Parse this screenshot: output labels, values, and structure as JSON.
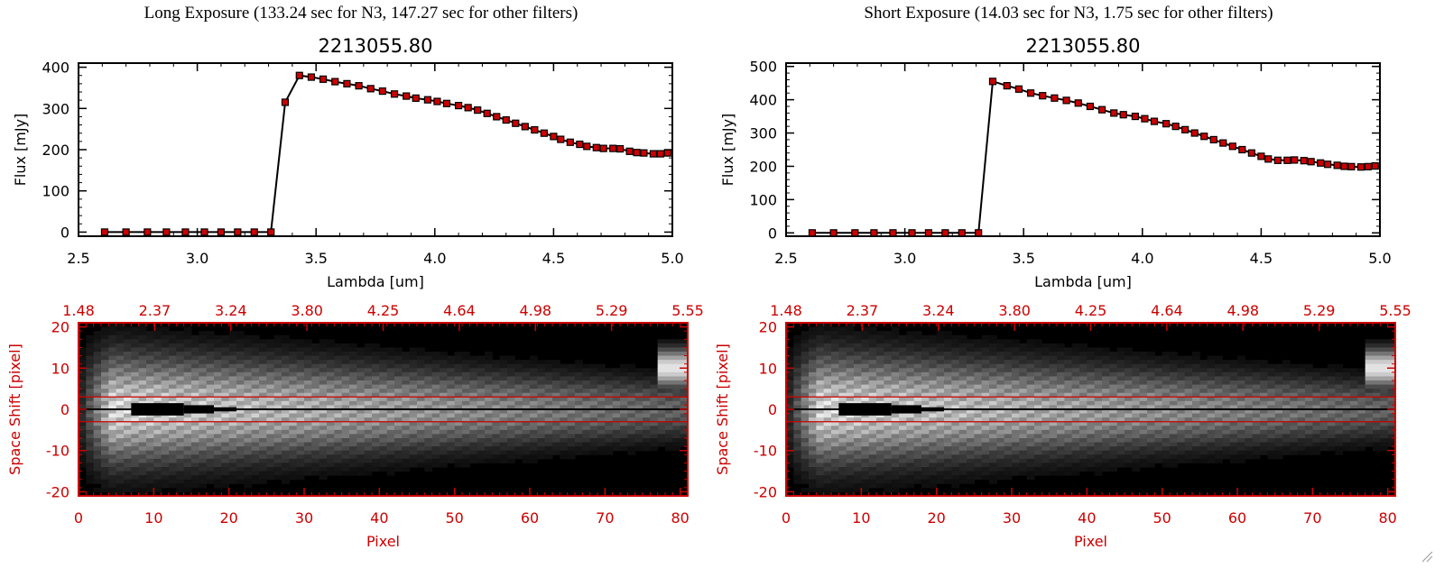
{
  "panels": [
    {
      "heading": "Long Exposure (133.24 sec for N3, 147.27 sec for other filters)",
      "chart_data": {
        "type": "line",
        "title": "2213055.80",
        "xlabel": "Lambda [um]",
        "ylabel": "Flux [mJy]",
        "xlim": [
          2.5,
          5.0
        ],
        "ylim": [
          -10,
          410
        ],
        "xticks": [
          "2.5",
          "3.0",
          "3.5",
          "4.0",
          "4.5",
          "5.0"
        ],
        "yticks": [
          "0",
          "100",
          "200",
          "300",
          "400"
        ],
        "x": [
          2.61,
          2.7,
          2.79,
          2.87,
          2.95,
          3.03,
          3.1,
          3.17,
          3.24,
          3.31,
          3.37,
          3.43,
          3.48,
          3.53,
          3.58,
          3.63,
          3.68,
          3.73,
          3.78,
          3.83,
          3.88,
          3.92,
          3.97,
          4.01,
          4.05,
          4.1,
          4.14,
          4.18,
          4.22,
          4.26,
          4.3,
          4.34,
          4.38,
          4.42,
          4.46,
          4.5,
          4.53,
          4.57,
          4.61,
          4.64,
          4.68,
          4.71,
          4.75,
          4.78,
          4.82,
          4.85,
          4.88,
          4.92,
          4.95,
          4.98
        ],
        "y": [
          0,
          0,
          0,
          0,
          0,
          0,
          0,
          0,
          0,
          0,
          315,
          380,
          376,
          371,
          365,
          360,
          355,
          348,
          342,
          335,
          330,
          325,
          321,
          317,
          312,
          307,
          302,
          296,
          288,
          280,
          272,
          264,
          256,
          248,
          240,
          232,
          225,
          218,
          213,
          208,
          205,
          203,
          203,
          202,
          196,
          193,
          192,
          190,
          190,
          192
        ],
        "data_color": "#cc0000",
        "line_color": "#000000"
      },
      "image_chart": {
        "type": "heatmap",
        "top_axis_ticks": [
          "1.48",
          "2.37",
          "3.24",
          "3.80",
          "4.25",
          "4.64",
          "4.98",
          "5.29",
          "5.55"
        ],
        "xlabel": "Pixel",
        "ylabel": "Space Shift [pixel]",
        "xlim": [
          0,
          81
        ],
        "ylim": [
          -21,
          21
        ],
        "xticks": [
          "0",
          "10",
          "20",
          "30",
          "40",
          "50",
          "60",
          "70",
          "80"
        ],
        "yticks": [
          "-20",
          "-10",
          "0",
          "10",
          "20"
        ],
        "aperture_lines": [
          3,
          -3
        ],
        "axis_color": "#cc0000"
      }
    },
    {
      "heading": "Short Exposure (14.03 sec for N3, 1.75 sec for other filters)",
      "chart_data": {
        "type": "line",
        "title": "2213055.80",
        "xlabel": "Lambda [um]",
        "ylabel": "Flux [mJy]",
        "xlim": [
          2.5,
          5.0
        ],
        "ylim": [
          -10,
          510
        ],
        "xticks": [
          "2.5",
          "3.0",
          "3.5",
          "4.0",
          "4.5",
          "5.0"
        ],
        "yticks": [
          "0",
          "100",
          "200",
          "300",
          "400",
          "500"
        ],
        "x": [
          2.61,
          2.7,
          2.79,
          2.87,
          2.95,
          3.03,
          3.1,
          3.17,
          3.24,
          3.31,
          3.37,
          3.43,
          3.48,
          3.53,
          3.58,
          3.63,
          3.68,
          3.73,
          3.78,
          3.83,
          3.88,
          3.92,
          3.97,
          4.01,
          4.05,
          4.1,
          4.14,
          4.18,
          4.22,
          4.26,
          4.3,
          4.34,
          4.38,
          4.42,
          4.46,
          4.5,
          4.53,
          4.57,
          4.61,
          4.64,
          4.68,
          4.71,
          4.75,
          4.78,
          4.82,
          4.85,
          4.88,
          4.92,
          4.95,
          4.98
        ],
        "y": [
          0,
          0,
          0,
          0,
          0,
          0,
          0,
          0,
          0,
          0,
          455,
          442,
          432,
          420,
          412,
          405,
          398,
          390,
          380,
          370,
          360,
          355,
          350,
          343,
          335,
          328,
          320,
          310,
          300,
          290,
          280,
          270,
          260,
          250,
          240,
          230,
          222,
          218,
          218,
          219,
          217,
          214,
          210,
          206,
          203,
          200,
          199,
          198,
          199,
          201
        ],
        "data_color": "#cc0000",
        "line_color": "#000000"
      },
      "image_chart": {
        "type": "heatmap",
        "top_axis_ticks": [
          "1.48",
          "2.37",
          "3.24",
          "3.80",
          "4.25",
          "4.64",
          "4.98",
          "5.29",
          "5.55"
        ],
        "xlabel": "Pixel",
        "ylabel": "Space Shift [pixel]",
        "xlim": [
          0,
          81
        ],
        "ylim": [
          -21,
          21
        ],
        "xticks": [
          "0",
          "10",
          "20",
          "30",
          "40",
          "50",
          "60",
          "70",
          "80"
        ],
        "yticks": [
          "-20",
          "-10",
          "0",
          "10",
          "20"
        ],
        "aperture_lines": [
          3,
          -3
        ],
        "axis_color": "#cc0000"
      }
    }
  ]
}
